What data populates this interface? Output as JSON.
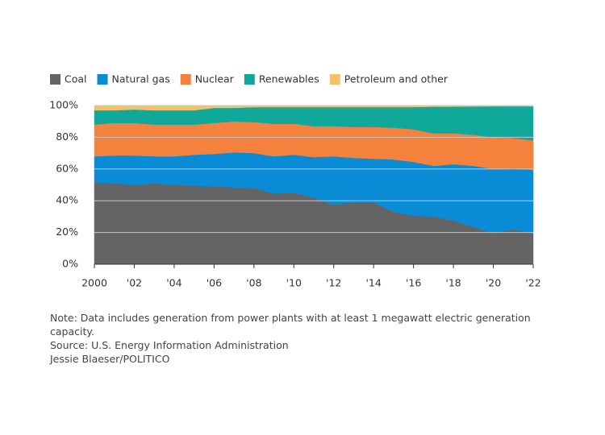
{
  "chart_data": {
    "type": "stacked_area",
    "x": [
      2000,
      2001,
      2002,
      2003,
      2004,
      2005,
      2006,
      2007,
      2008,
      2009,
      2010,
      2011,
      2012,
      2013,
      2014,
      2015,
      2016,
      2017,
      2018,
      2019,
      2020,
      2021,
      2022
    ],
    "series": [
      {
        "name": "Coal",
        "color": "#646464",
        "values": [
          51.7,
          51,
          50,
          51,
          50,
          49.6,
          49,
          48.5,
          48,
          44.5,
          45,
          42,
          37.5,
          39,
          39,
          33,
          30.5,
          30,
          27.5,
          23.5,
          19.5,
          22,
          19.5
        ]
      },
      {
        "name": "Natural gas",
        "color": "#0a8bd6",
        "values": [
          16.3,
          17.5,
          18.5,
          17,
          18,
          19.4,
          20.5,
          22,
          22,
          23.5,
          24,
          25.5,
          30.5,
          28,
          27.5,
          33,
          34,
          32,
          35.5,
          38.5,
          40.5,
          38.5,
          40
        ]
      },
      {
        "name": "Nuclear",
        "color": "#f5823c",
        "values": [
          20,
          20.5,
          20.5,
          20,
          20,
          19,
          19.5,
          19.5,
          19.5,
          20.5,
          19.5,
          19.5,
          19,
          19.5,
          20,
          20,
          20.5,
          20.5,
          19.5,
          19.5,
          20,
          19,
          18.5
        ]
      },
      {
        "name": "Renewables",
        "color": "#10a89a",
        "values": [
          9,
          8,
          8.5,
          9,
          9,
          9,
          9.5,
          8.5,
          9.5,
          10.5,
          10.5,
          12,
          12,
          12.5,
          12.5,
          13,
          14,
          16.8,
          16.8,
          17.9,
          19.5,
          20,
          21.5
        ]
      },
      {
        "name": "Petroleum and other",
        "color": "#f2c26b",
        "values": [
          3,
          3,
          2.5,
          3,
          3,
          3,
          1.5,
          1.5,
          1,
          1,
          1,
          1,
          1,
          1,
          1,
          1,
          1,
          0.7,
          0.7,
          0.6,
          0.5,
          0.5,
          0.5
        ]
      }
    ],
    "xlim": [
      2000,
      2022
    ],
    "xticks": [
      {
        "value": 2000,
        "label": "2000"
      },
      {
        "value": 2002,
        "label": "'02"
      },
      {
        "value": 2004,
        "label": "'04"
      },
      {
        "value": 2006,
        "label": "'06"
      },
      {
        "value": 2008,
        "label": "'08"
      },
      {
        "value": 2010,
        "label": "'10"
      },
      {
        "value": 2012,
        "label": "'12"
      },
      {
        "value": 2014,
        "label": "'14"
      },
      {
        "value": 2016,
        "label": "'16"
      },
      {
        "value": 2018,
        "label": "'18"
      },
      {
        "value": 2020,
        "label": "'20"
      },
      {
        "value": 2022,
        "label": "'22"
      }
    ],
    "ylim": [
      0,
      100
    ],
    "yticks": [
      {
        "value": 0,
        "label": "0%"
      },
      {
        "value": 20,
        "label": "20%"
      },
      {
        "value": 40,
        "label": "40%"
      },
      {
        "value": 60,
        "label": "60%"
      },
      {
        "value": 80,
        "label": "80%"
      },
      {
        "value": 100,
        "label": "100%"
      }
    ],
    "grid": true,
    "legend": "top-left",
    "note": "Note: Data includes generation from power plants with at least 1 megawatt electric generation capacity.",
    "source": "Source: U.S. Energy Information Administration",
    "credit": "Jessie Blaeser/POLITICO"
  }
}
